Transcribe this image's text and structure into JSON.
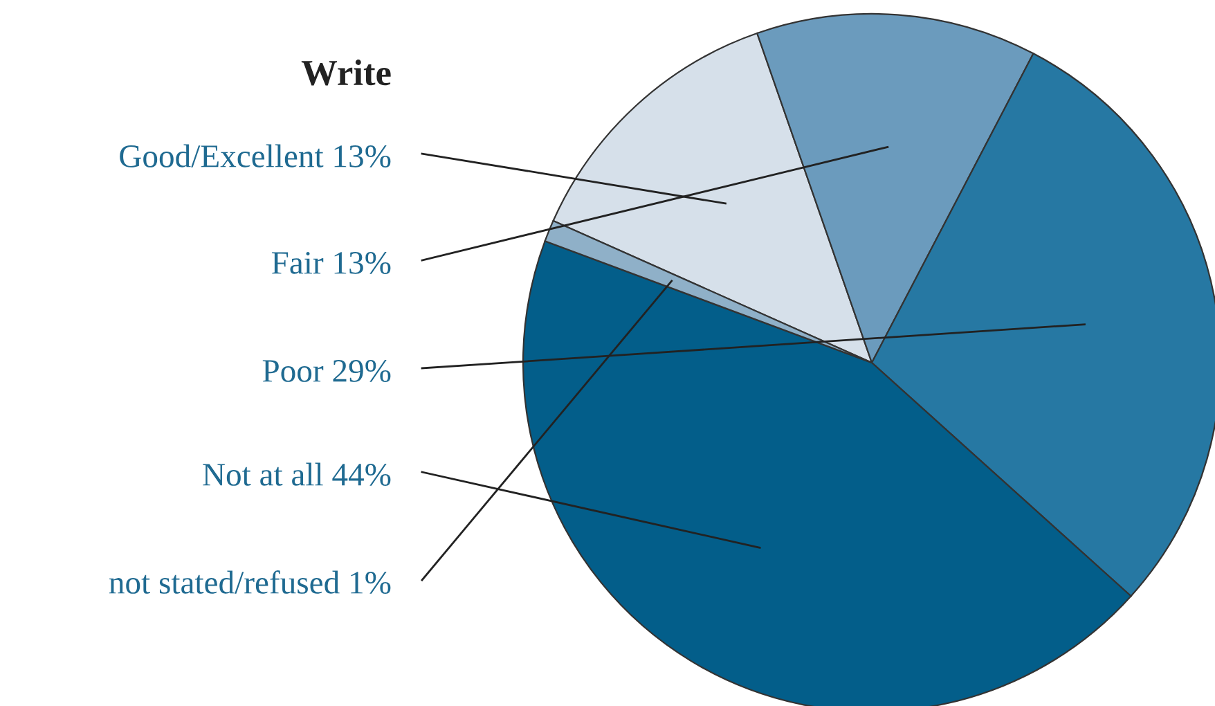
{
  "chart_data": {
    "type": "pie",
    "title": "Write",
    "categories": [
      "Good/Excellent",
      "Fair",
      "Poor",
      "Not at all",
      "not stated/refused"
    ],
    "values": [
      13,
      13,
      29,
      44,
      1
    ],
    "value_labels": [
      "13%",
      "13%",
      "29%",
      "44%",
      "1%"
    ],
    "colors": [
      "#d6e0ea",
      "#6b9bbd",
      "#2678a3",
      "#035e8a",
      "#8fb0c8"
    ]
  }
}
